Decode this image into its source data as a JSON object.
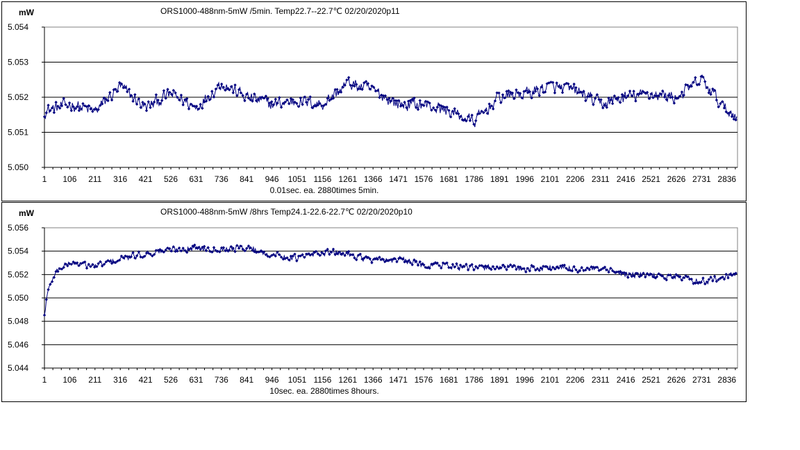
{
  "chart_data": [
    {
      "type": "line",
      "title": "ORS1000-488nm-5mW /5min. Temp22.7--22.7℃  02/20/2020p11",
      "ylabel": "mW",
      "xlabel": "0.01sec. ea. 2880times 5min.",
      "ylim": [
        5.05,
        5.054
      ],
      "yticks": [
        "5.050",
        "5.051",
        "5.052",
        "5.053",
        "5.054"
      ],
      "xlim": [
        1,
        2880
      ],
      "xticks": [
        "1",
        "106",
        "211",
        "316",
        "421",
        "526",
        "631",
        "736",
        "841",
        "946",
        "1051",
        "1156",
        "1261",
        "1366",
        "1471",
        "1576",
        "1681",
        "1786",
        "1891",
        "1996",
        "2101",
        "2206",
        "2311",
        "2416",
        "2521",
        "2626",
        "2731",
        "2836"
      ],
      "grid": "horizontal",
      "series_color": "#000080",
      "series": [
        {
          "x": [
            1,
            106,
            211,
            316,
            421,
            526,
            631,
            736,
            841,
            946,
            1051,
            1156,
            1261,
            1366,
            1471,
            1576,
            1681,
            1786,
            1891,
            1996,
            2101,
            2206,
            2311,
            2416,
            2521,
            2626,
            2731,
            2836,
            2880
          ],
          "values": [
            5.0516,
            5.0518,
            5.0516,
            5.0523,
            5.0517,
            5.0521,
            5.0517,
            5.0524,
            5.052,
            5.0518,
            5.0519,
            5.0518,
            5.0524,
            5.0522,
            5.0518,
            5.0518,
            5.0516,
            5.0513,
            5.052,
            5.0521,
            5.0523,
            5.0522,
            5.0518,
            5.052,
            5.0521,
            5.052,
            5.0525,
            5.0516,
            5.0515
          ],
          "noise": 0.00025
        }
      ]
    },
    {
      "type": "line",
      "title": "ORS1000-488nm-5mW /8hrs Temp24.1-22.6-22.7℃  02/20/2020p10",
      "ylabel": "mW",
      "xlabel": "10sec. ea. 2880times 8hours.",
      "ylim": [
        5.044,
        5.056
      ],
      "yticks": [
        "5.044",
        "5.046",
        "5.048",
        "5.050",
        "5.052",
        "5.054",
        "5.056"
      ],
      "xlim": [
        1,
        2880
      ],
      "xticks": [
        "1",
        "106",
        "211",
        "316",
        "421",
        "526",
        "631",
        "736",
        "841",
        "946",
        "1051",
        "1156",
        "1261",
        "1366",
        "1471",
        "1576",
        "1681",
        "1786",
        "1891",
        "1996",
        "2101",
        "2206",
        "2311",
        "2416",
        "2521",
        "2626",
        "2731",
        "2836"
      ],
      "grid": "horizontal",
      "series_color": "#000080",
      "series": [
        {
          "x": [
            1,
            10,
            30,
            60,
            106,
            211,
            316,
            421,
            526,
            631,
            736,
            841,
            946,
            1051,
            1156,
            1261,
            1366,
            1471,
            1576,
            1681,
            1786,
            1891,
            1996,
            2101,
            2206,
            2311,
            2416,
            2521,
            2626,
            2731,
            2836,
            2880
          ],
          "values": [
            5.0485,
            5.05,
            5.0515,
            5.0525,
            5.053,
            5.0527,
            5.0533,
            5.0538,
            5.0541,
            5.0543,
            5.0542,
            5.0543,
            5.0537,
            5.0534,
            5.0539,
            5.0538,
            5.0532,
            5.0533,
            5.0528,
            5.0528,
            5.0525,
            5.0527,
            5.0525,
            5.0526,
            5.0525,
            5.0524,
            5.052,
            5.0519,
            5.0518,
            5.0514,
            5.0518,
            5.0521
          ],
          "noise": 0.0004
        }
      ]
    }
  ]
}
